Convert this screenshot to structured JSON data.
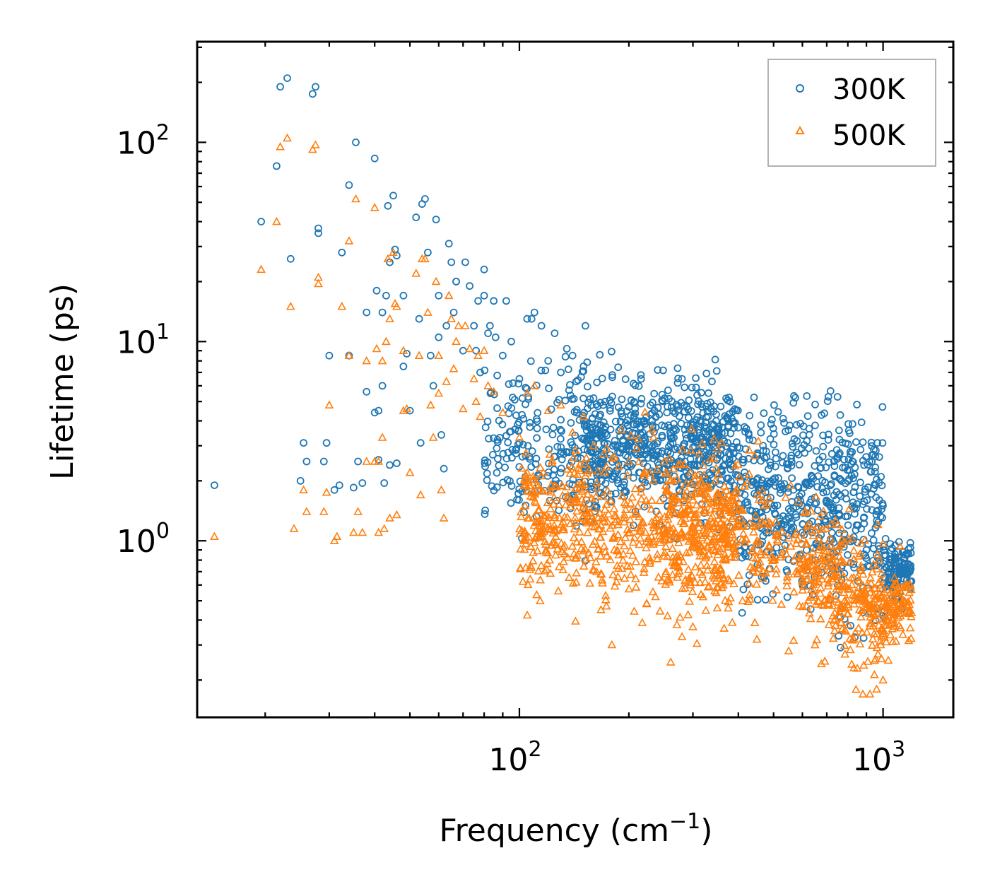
{
  "chart_data": {
    "type": "scatter",
    "xscale": "log",
    "yscale": "log",
    "xlabel": "Frequency (cm",
    "xlabel_exponent": "−1",
    "xlabel_suffix": ")",
    "ylabel": "Lifetime (ps)",
    "xlim": [
      13,
      1560
    ],
    "ylim": [
      0.13,
      320
    ],
    "xticks": [
      {
        "value": 100,
        "base": "10",
        "exp": "2"
      },
      {
        "value": 1000,
        "base": "10",
        "exp": "3"
      }
    ],
    "yticks": [
      {
        "value": 1,
        "base": "10",
        "exp": "0"
      },
      {
        "value": 10,
        "base": "10",
        "exp": "1"
      },
      {
        "value": 100,
        "base": "10",
        "exp": "2"
      }
    ],
    "legend_position": "top-right",
    "series": [
      {
        "name": "300K",
        "marker": "circle",
        "color": "#1f77b4",
        "points": [
          [
            14.5,
            1.9
          ],
          [
            19.5,
            40
          ],
          [
            21.5,
            76
          ],
          [
            22,
            190
          ],
          [
            23,
            210
          ],
          [
            23.5,
            26
          ],
          [
            25,
            2.0
          ],
          [
            25.5,
            3.1
          ],
          [
            26,
            2.5
          ],
          [
            27,
            175
          ],
          [
            27.5,
            190
          ],
          [
            28,
            37
          ],
          [
            28,
            35
          ],
          [
            29,
            2.5
          ],
          [
            29.5,
            3.1
          ],
          [
            30,
            8.5
          ],
          [
            31,
            1.8
          ],
          [
            32,
            1.9
          ],
          [
            32.5,
            28
          ],
          [
            34,
            8.5
          ],
          [
            34,
            61
          ],
          [
            35,
            1.85
          ],
          [
            35.5,
            100
          ],
          [
            36,
            2.5
          ],
          [
            37,
            1.95
          ],
          [
            38,
            14
          ],
          [
            38,
            5.6
          ],
          [
            40,
            83
          ],
          [
            40,
            4.4
          ],
          [
            40.5,
            18
          ],
          [
            41,
            4.5
          ],
          [
            41,
            2.55
          ],
          [
            42,
            14
          ],
          [
            42,
            6
          ],
          [
            42.5,
            1.95
          ],
          [
            43,
            17
          ],
          [
            43.5,
            48
          ],
          [
            44,
            2.4
          ],
          [
            44,
            25
          ],
          [
            45,
            54
          ],
          [
            45.5,
            29
          ],
          [
            46,
            27
          ],
          [
            46,
            2.45
          ],
          [
            48,
            17
          ],
          [
            48,
            7.5
          ],
          [
            49,
            8.7
          ],
          [
            50,
            4.5
          ],
          [
            52,
            42
          ],
          [
            53,
            13
          ],
          [
            53.5,
            3.1
          ],
          [
            54,
            49
          ],
          [
            55,
            52
          ],
          [
            56,
            28
          ],
          [
            57,
            8.5
          ],
          [
            58,
            6
          ],
          [
            59,
            41
          ],
          [
            60,
            10.5
          ],
          [
            60,
            17
          ],
          [
            61,
            3.4
          ],
          [
            62,
            2.3
          ],
          [
            63,
            12
          ],
          [
            64,
            31
          ],
          [
            65,
            25
          ],
          [
            66,
            14
          ],
          [
            67,
            20
          ],
          [
            67,
            20
          ],
          [
            70,
            9
          ],
          [
            71,
            25
          ],
          [
            73,
            19
          ],
          [
            75,
            12
          ],
          [
            76,
            9
          ],
          [
            77,
            16
          ],
          [
            78,
            7
          ],
          [
            80,
            17
          ],
          [
            80,
            23
          ],
          [
            82,
            11
          ],
          [
            83,
            12
          ],
          [
            85,
            16
          ],
          [
            86,
            10.5
          ],
          [
            90,
            8.5
          ],
          [
            92,
            16
          ],
          [
            95,
            10
          ],
          [
            100,
            6.5
          ],
          [
            102,
            5.2
          ],
          [
            105,
            13
          ],
          [
            108,
            13
          ],
          [
            110,
            14
          ],
          [
            115,
            12
          ],
          [
            120,
            8
          ],
          [
            125,
            11
          ],
          [
            130,
            7
          ],
          [
            135,
            9.2
          ],
          [
            140,
            8.5
          ],
          [
            145,
            6.4
          ],
          [
            150,
            7.1
          ],
          [
            160,
            5.2
          ],
          [
            170,
            4.8
          ],
          [
            180,
            5.3
          ],
          [
            200,
            4.7
          ],
          [
            220,
            4.0
          ],
          [
            240,
            7.2
          ],
          [
            260,
            3.5
          ],
          [
            280,
            6.5
          ],
          [
            300,
            3.8
          ],
          [
            320,
            2.7
          ],
          [
            350,
            2.6
          ],
          [
            380,
            2.7
          ],
          [
            400,
            2.1
          ],
          [
            450,
            1.7
          ],
          [
            500,
            1.45
          ],
          [
            520,
            1.25
          ],
          [
            560,
            1.15
          ],
          [
            600,
            1.1
          ],
          [
            620,
            1.15
          ],
          [
            680,
            1.35
          ],
          [
            700,
            1.55
          ],
          [
            720,
            1.2
          ],
          [
            780,
            1.0
          ],
          [
            850,
            0.98
          ],
          [
            870,
            1.15
          ],
          [
            900,
            0.9
          ],
          [
            950,
            0.75
          ],
          [
            1000,
            0.42
          ],
          [
            1050,
            0.8
          ],
          [
            1100,
            0.88
          ],
          [
            1150,
            0.85
          ],
          [
            1180,
            0.75
          ]
        ],
        "cloud": [
          [
            80,
            2.8,
            160,
            3.4,
            0.55,
            220
          ],
          [
            150,
            2.8,
            400,
            3.0,
            0.45,
            650
          ],
          [
            400,
            1.6,
            1000,
            1.4,
            0.7,
            550
          ],
          [
            1000,
            0.7,
            1200,
            0.75,
            0.2,
            120
          ]
        ]
      },
      {
        "name": "500K",
        "marker": "triangle",
        "color": "#ff7f0e",
        "points": [
          [
            14.5,
            1.05
          ],
          [
            19.5,
            23
          ],
          [
            21.5,
            40
          ],
          [
            22,
            95
          ],
          [
            23,
            105
          ],
          [
            23.5,
            15
          ],
          [
            24,
            1.15
          ],
          [
            25.5,
            1.8
          ],
          [
            26,
            1.4
          ],
          [
            27,
            92
          ],
          [
            27.5,
            97
          ],
          [
            28,
            19.5
          ],
          [
            28,
            21
          ],
          [
            29,
            1.4
          ],
          [
            29.5,
            1.75
          ],
          [
            30,
            4.8
          ],
          [
            31,
            1.0
          ],
          [
            31.5,
            1.05
          ],
          [
            32.5,
            15
          ],
          [
            34,
            8.5
          ],
          [
            34,
            32
          ],
          [
            35,
            1.1
          ],
          [
            35.5,
            52
          ],
          [
            36,
            1.4
          ],
          [
            37,
            1.1
          ],
          [
            38,
            8
          ],
          [
            38,
            2.5
          ],
          [
            40,
            47
          ],
          [
            40,
            2.5
          ],
          [
            40.5,
            9.2
          ],
          [
            41,
            2.5
          ],
          [
            41,
            1.1
          ],
          [
            42,
            8
          ],
          [
            42,
            3.3
          ],
          [
            42.5,
            1.15
          ],
          [
            43,
            10
          ],
          [
            43.5,
            26
          ],
          [
            44,
            1.3
          ],
          [
            44,
            13
          ],
          [
            45,
            28
          ],
          [
            45.5,
            15.5
          ],
          [
            46,
            15
          ],
          [
            46,
            1.35
          ],
          [
            48,
            9
          ],
          [
            48,
            4.5
          ],
          [
            49,
            4.6
          ],
          [
            50,
            2.2
          ],
          [
            52,
            22
          ],
          [
            53,
            8.5
          ],
          [
            53.5,
            1.7
          ],
          [
            54,
            26
          ],
          [
            55,
            26
          ],
          [
            56,
            14
          ],
          [
            57,
            4.8
          ],
          [
            58,
            3.3
          ],
          [
            59,
            20
          ],
          [
            60,
            5.5
          ],
          [
            60,
            8.5
          ],
          [
            61,
            1.8
          ],
          [
            62,
            1.3
          ],
          [
            63,
            6.3
          ],
          [
            64,
            17
          ],
          [
            65,
            13
          ],
          [
            66,
            7.3
          ],
          [
            67,
            10
          ],
          [
            68,
            12
          ],
          [
            70,
            4.6
          ],
          [
            71,
            12
          ],
          [
            73,
            9.2
          ],
          [
            75,
            6.5
          ],
          [
            76,
            5
          ],
          [
            77,
            8.5
          ],
          [
            78,
            4.2
          ],
          [
            80,
            9
          ],
          [
            82,
            6
          ],
          [
            85,
            5.6
          ],
          [
            90,
            4.4
          ],
          [
            100,
            3.3
          ],
          [
            105,
            5.5
          ],
          [
            110,
            6
          ],
          [
            120,
            4.5
          ],
          [
            130,
            4.8
          ],
          [
            140,
            3.5
          ],
          [
            150,
            4.2
          ],
          [
            160,
            3.0
          ],
          [
            180,
            2.6
          ],
          [
            200,
            2.5
          ],
          [
            220,
            2.2
          ],
          [
            250,
            2.5
          ],
          [
            260,
            2.0
          ],
          [
            280,
            1.8
          ],
          [
            300,
            1.6
          ],
          [
            350,
            1.55
          ],
          [
            400,
            1.2
          ],
          [
            450,
            1.0
          ],
          [
            500,
            0.8
          ],
          [
            550,
            0.68
          ],
          [
            600,
            0.62
          ],
          [
            650,
            0.7
          ],
          [
            680,
            0.82
          ],
          [
            700,
            0.95
          ],
          [
            720,
            0.75
          ],
          [
            780,
            0.55
          ],
          [
            850,
            0.55
          ],
          [
            870,
            0.75
          ],
          [
            900,
            0.5
          ],
          [
            950,
            0.42
          ],
          [
            1000,
            0.2
          ],
          [
            1050,
            0.55
          ],
          [
            1100,
            0.58
          ],
          [
            1150,
            0.6
          ],
          [
            1180,
            0.55
          ],
          [
            280,
            0.33
          ],
          [
            300,
            0.37
          ],
          [
            350,
            0.46
          ],
          [
            450,
            0.32
          ],
          [
            550,
            0.28
          ],
          [
            650,
            0.3
          ],
          [
            820,
            0.24
          ],
          [
            880,
            0.17
          ],
          [
            920,
            0.17
          ],
          [
            960,
            0.18
          ]
        ],
        "cloud": [
          [
            100,
            1.25,
            400,
            1.0,
            0.55,
            650
          ],
          [
            250,
            1.3,
            600,
            0.9,
            0.5,
            300
          ],
          [
            600,
            0.75,
            1000,
            0.45,
            0.45,
            300
          ],
          [
            1000,
            0.4,
            1200,
            0.5,
            0.25,
            100
          ]
        ]
      }
    ]
  }
}
